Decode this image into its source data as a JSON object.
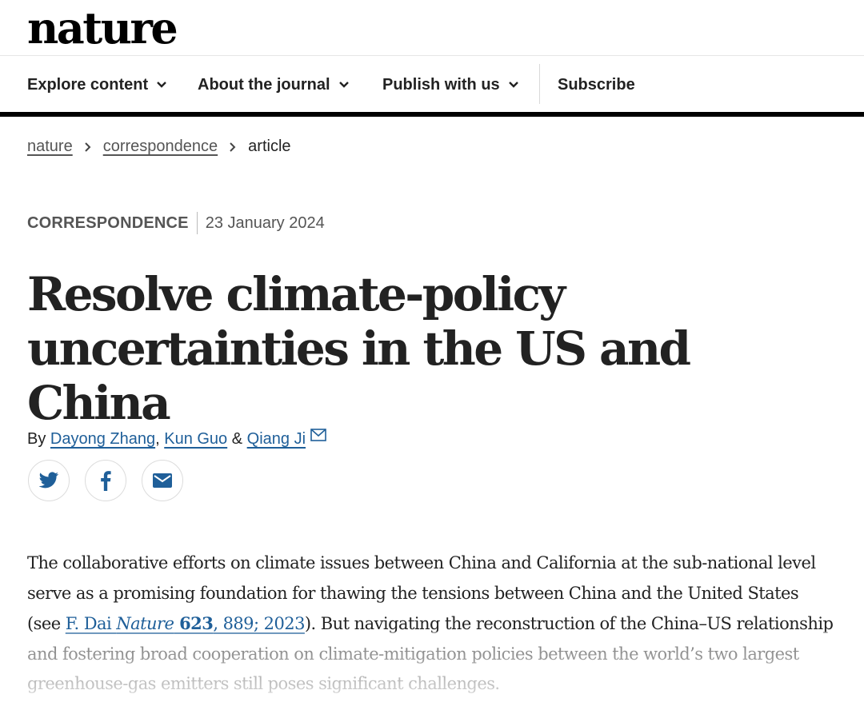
{
  "header": {
    "logo": "nature"
  },
  "nav": {
    "items": [
      {
        "label": "Explore content"
      },
      {
        "label": "About the journal"
      },
      {
        "label": "Publish with us"
      }
    ],
    "subscribe": "Subscribe"
  },
  "breadcrumb": {
    "items": [
      "nature",
      "correspondence"
    ],
    "current": "article"
  },
  "article": {
    "type": "CORRESPONDENCE",
    "date": "23 January 2024",
    "title_line1": "Resolve climate-policy",
    "title_line2": "uncertainties in the US and China",
    "by": "By",
    "authors": [
      "Dayong Zhang",
      "Kun Guo",
      "Qiang Ji"
    ],
    "author_sep1": ",",
    "author_sep2": "&",
    "share": [
      "twitter-icon",
      "facebook-icon",
      "email-icon"
    ],
    "body": {
      "part1": "The collaborative efforts on climate issues between China and California at the sub-national level serve as a promising foundation for thawing the tensions between China and the United States (see ",
      "ref_author": "F. Dai ",
      "ref_journal": "Nature",
      "ref_vol": " 623",
      "ref_pages": ", 889; 2023",
      "part2": "). But navigating the reconstruction of the China–US relationship and fostering broad cooperation on climate-mitigation policies between the world’s two largest greenhouse-gas emitters still poses significant challenges."
    }
  },
  "colors": {
    "link": "#1f5f99",
    "text": "#222222",
    "muted": "#555555"
  }
}
